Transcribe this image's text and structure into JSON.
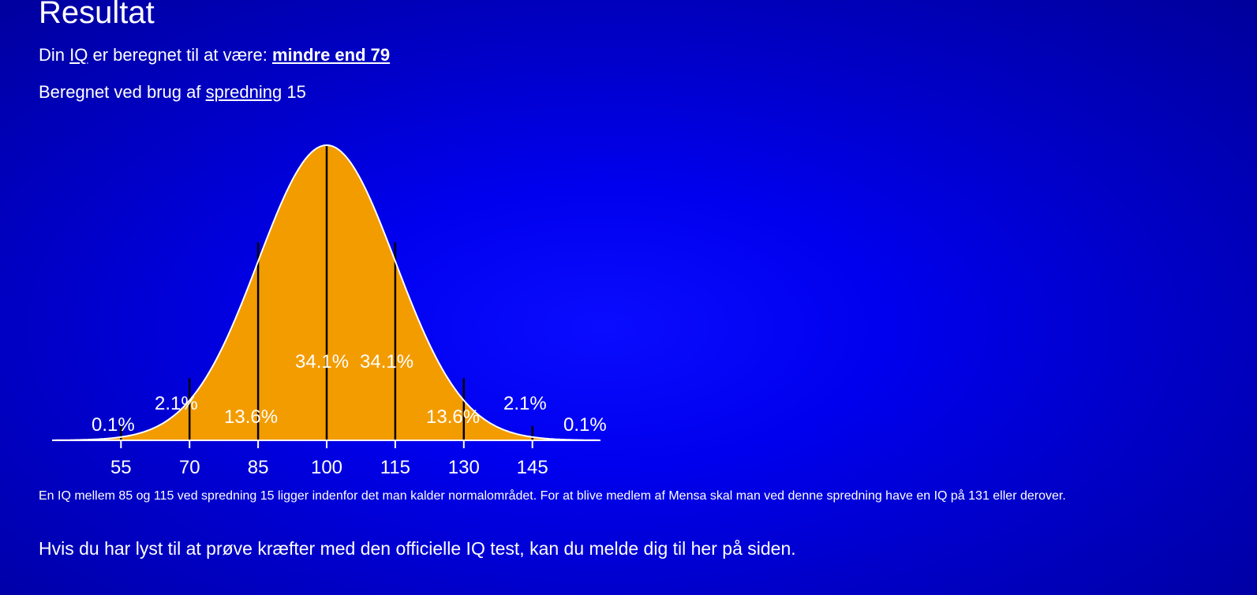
{
  "heading": "Resultat",
  "result": {
    "prefix": "Din",
    "iq_link": "IQ",
    "middle": "er beregnet til at være:",
    "value": "mindre end 79"
  },
  "deviation": {
    "prefix": "Beregnet ved brug af",
    "link": "spredning",
    "value": "15"
  },
  "chart_data": {
    "type": "area",
    "distribution": "normal",
    "mean": 100,
    "sd": 15,
    "x_ticks": [
      "55",
      "70",
      "85",
      "100",
      "115",
      "130",
      "145"
    ],
    "segments": [
      {
        "from": null,
        "to": 55,
        "label": "0.1%"
      },
      {
        "from": 55,
        "to": 70,
        "label": "2.1%"
      },
      {
        "from": 70,
        "to": 85,
        "label": "13.6%"
      },
      {
        "from": 85,
        "to": 100,
        "label": "34.1%"
      },
      {
        "from": 100,
        "to": 115,
        "label": "34.1%"
      },
      {
        "from": 115,
        "to": 130,
        "label": "13.6%"
      },
      {
        "from": 130,
        "to": 145,
        "label": "2.1%"
      },
      {
        "from": 145,
        "to": null,
        "label": "0.1%"
      }
    ],
    "colors": {
      "fill": "#f39c00",
      "curve": "#ffffff",
      "lines": "#000000",
      "labels": "#ffffff"
    }
  },
  "note": "En IQ mellem 85 og 115 ved spredning 15 ligger indenfor det man kalder normalområdet. For at blive medlem af Mensa skal man ved denne spredning have en IQ på 131 eller derover.",
  "cta": "Hvis du har lyst til at prøve kræfter med den officielle IQ test, kan du melde dig til her på siden."
}
